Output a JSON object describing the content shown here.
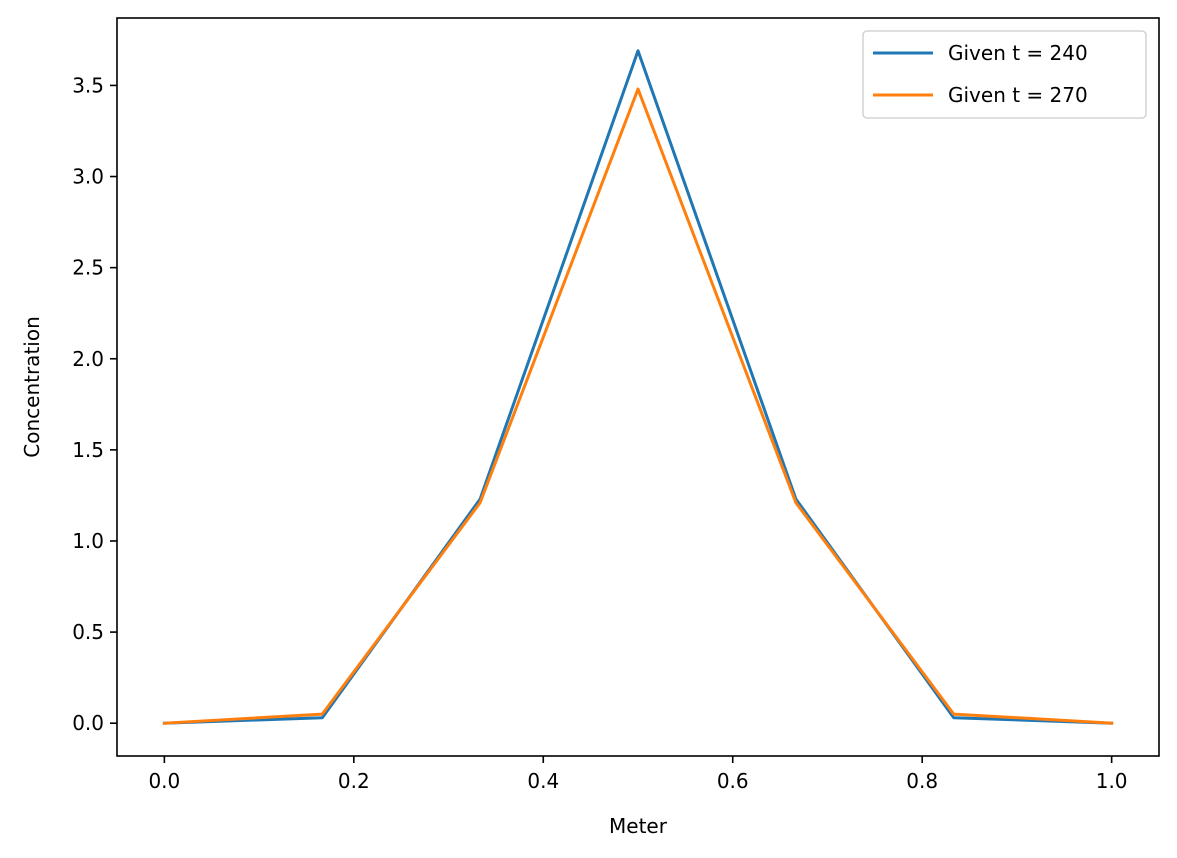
{
  "chart_data": {
    "type": "line",
    "title": "",
    "xlabel": "Meter",
    "ylabel": "Concentration",
    "xlim": [
      -0.05,
      1.05
    ],
    "ylim": [
      -0.18,
      3.87
    ],
    "xticks": [
      0.0,
      0.2,
      0.4,
      0.6,
      0.8,
      1.0
    ],
    "xtick_labels": [
      "0.0",
      "0.2",
      "0.4",
      "0.6",
      "0.8",
      "1.0"
    ],
    "yticks": [
      0.0,
      0.5,
      1.0,
      1.5,
      2.0,
      2.5,
      3.0,
      3.5
    ],
    "ytick_labels": [
      "0.0",
      "0.5",
      "1.0",
      "1.5",
      "2.0",
      "2.5",
      "3.0",
      "3.5"
    ],
    "grid": false,
    "legend_position": "top-right",
    "x": [
      0.0,
      0.1667,
      0.3333,
      0.5,
      0.6667,
      0.8333,
      1.0
    ],
    "series": [
      {
        "name": "Given t = 240",
        "color": "#1f77b4",
        "values": [
          0.0,
          0.03,
          1.23,
          3.69,
          1.23,
          0.03,
          0.0
        ]
      },
      {
        "name": "Given t = 270",
        "color": "#ff7f0e",
        "values": [
          0.0,
          0.05,
          1.21,
          3.48,
          1.21,
          0.05,
          0.0
        ]
      }
    ]
  }
}
